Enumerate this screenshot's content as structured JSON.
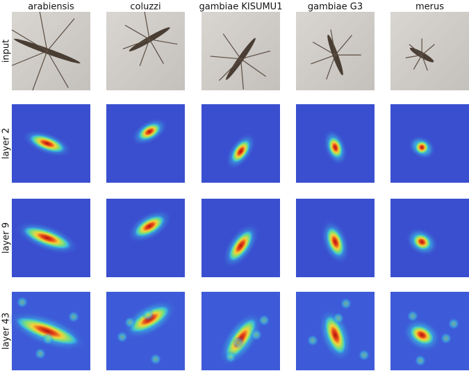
{
  "columns": [
    "arabiensis",
    "coluzzi",
    "gambiae KISUMU1",
    "gambiae G3",
    "merus"
  ],
  "rows": [
    "input",
    "layer 2",
    "layer 9",
    "layer 43"
  ]
}
